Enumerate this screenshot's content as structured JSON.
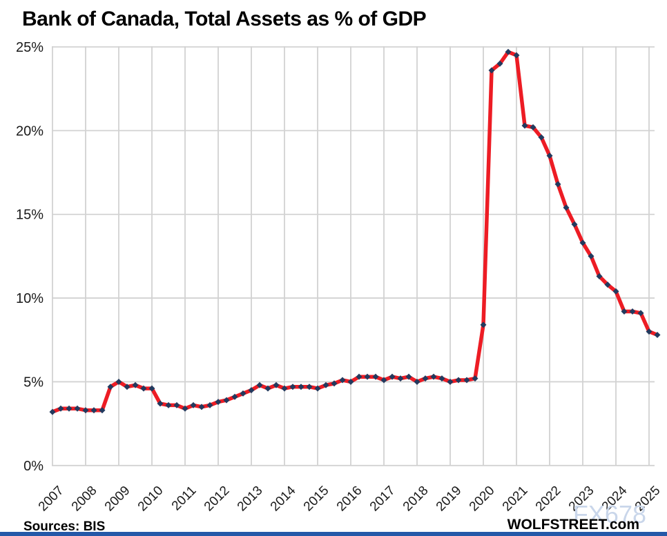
{
  "page": {
    "title": "Bank of Canada, Total Assets as % of GDP"
  },
  "footer": {
    "sources": "Sources: BIS",
    "branding": "WOLFSTREET.com",
    "bottom_bar_color": "#2458a8"
  },
  "watermark": {
    "text": "FX678",
    "color": "#c9d6ea"
  },
  "chart_data": {
    "type": "line",
    "title": "Bank of Canada, Total Assets as % of GDP",
    "xlabel": "",
    "ylabel": "",
    "unit": "% of GDP",
    "frequency": "quarterly",
    "grid": true,
    "legend": "none",
    "ylim": [
      0,
      25
    ],
    "y_tick_labels": [
      "0%",
      "5%",
      "10%",
      "15%",
      "20%",
      "25%"
    ],
    "y_tick_values": [
      0,
      5,
      10,
      15,
      20,
      25
    ],
    "x_tick_labels": [
      "2007",
      "2008",
      "2009",
      "2010",
      "2011",
      "2012",
      "2013",
      "2014",
      "2015",
      "2016",
      "2017",
      "2018",
      "2019",
      "2020",
      "2021",
      "2022",
      "2023",
      "2024",
      "2025"
    ],
    "line_color": "#ed1c24",
    "marker_color": "#223a5e",
    "marker_shape": "diamond",
    "gridline_color": "#d2d2d2",
    "series": [
      {
        "name": "Bank of Canada total assets as % of GDP",
        "quarters": [
          "2007Q1",
          "2007Q2",
          "2007Q3",
          "2007Q4",
          "2008Q1",
          "2008Q2",
          "2008Q3",
          "2008Q4",
          "2009Q1",
          "2009Q2",
          "2009Q3",
          "2009Q4",
          "2010Q1",
          "2010Q2",
          "2010Q3",
          "2010Q4",
          "2011Q1",
          "2011Q2",
          "2011Q3",
          "2011Q4",
          "2012Q1",
          "2012Q2",
          "2012Q3",
          "2012Q4",
          "2013Q1",
          "2013Q2",
          "2013Q3",
          "2013Q4",
          "2014Q1",
          "2014Q2",
          "2014Q3",
          "2014Q4",
          "2015Q1",
          "2015Q2",
          "2015Q3",
          "2015Q4",
          "2016Q1",
          "2016Q2",
          "2016Q3",
          "2016Q4",
          "2017Q1",
          "2017Q2",
          "2017Q3",
          "2017Q4",
          "2018Q1",
          "2018Q2",
          "2018Q3",
          "2018Q4",
          "2019Q1",
          "2019Q2",
          "2019Q3",
          "2019Q4",
          "2020Q1",
          "2020Q2",
          "2020Q3",
          "2020Q4",
          "2021Q1",
          "2021Q2",
          "2021Q3",
          "2021Q4",
          "2022Q1",
          "2022Q2",
          "2022Q3",
          "2022Q4",
          "2023Q1",
          "2023Q2",
          "2023Q3",
          "2023Q4",
          "2024Q1",
          "2024Q2",
          "2024Q3",
          "2024Q4",
          "2025Q1",
          "2025Q2"
        ],
        "values": [
          3.2,
          3.4,
          3.4,
          3.4,
          3.3,
          3.3,
          3.3,
          4.7,
          5.0,
          4.7,
          4.8,
          4.6,
          4.6,
          3.7,
          3.6,
          3.6,
          3.4,
          3.6,
          3.5,
          3.6,
          3.8,
          3.9,
          4.1,
          4.3,
          4.5,
          4.8,
          4.6,
          4.8,
          4.6,
          4.7,
          4.7,
          4.7,
          4.6,
          4.8,
          4.9,
          5.1,
          5.0,
          5.3,
          5.3,
          5.3,
          5.1,
          5.3,
          5.2,
          5.3,
          5.0,
          5.2,
          5.3,
          5.2,
          5.0,
          5.1,
          5.1,
          5.2,
          8.4,
          23.6,
          24.0,
          24.7,
          24.5,
          20.3,
          20.2,
          19.6,
          18.5,
          16.8,
          15.4,
          14.4,
          13.3,
          12.5,
          11.3,
          10.8,
          10.4,
          9.2,
          9.2,
          9.1,
          8.0,
          7.8
        ]
      }
    ]
  }
}
